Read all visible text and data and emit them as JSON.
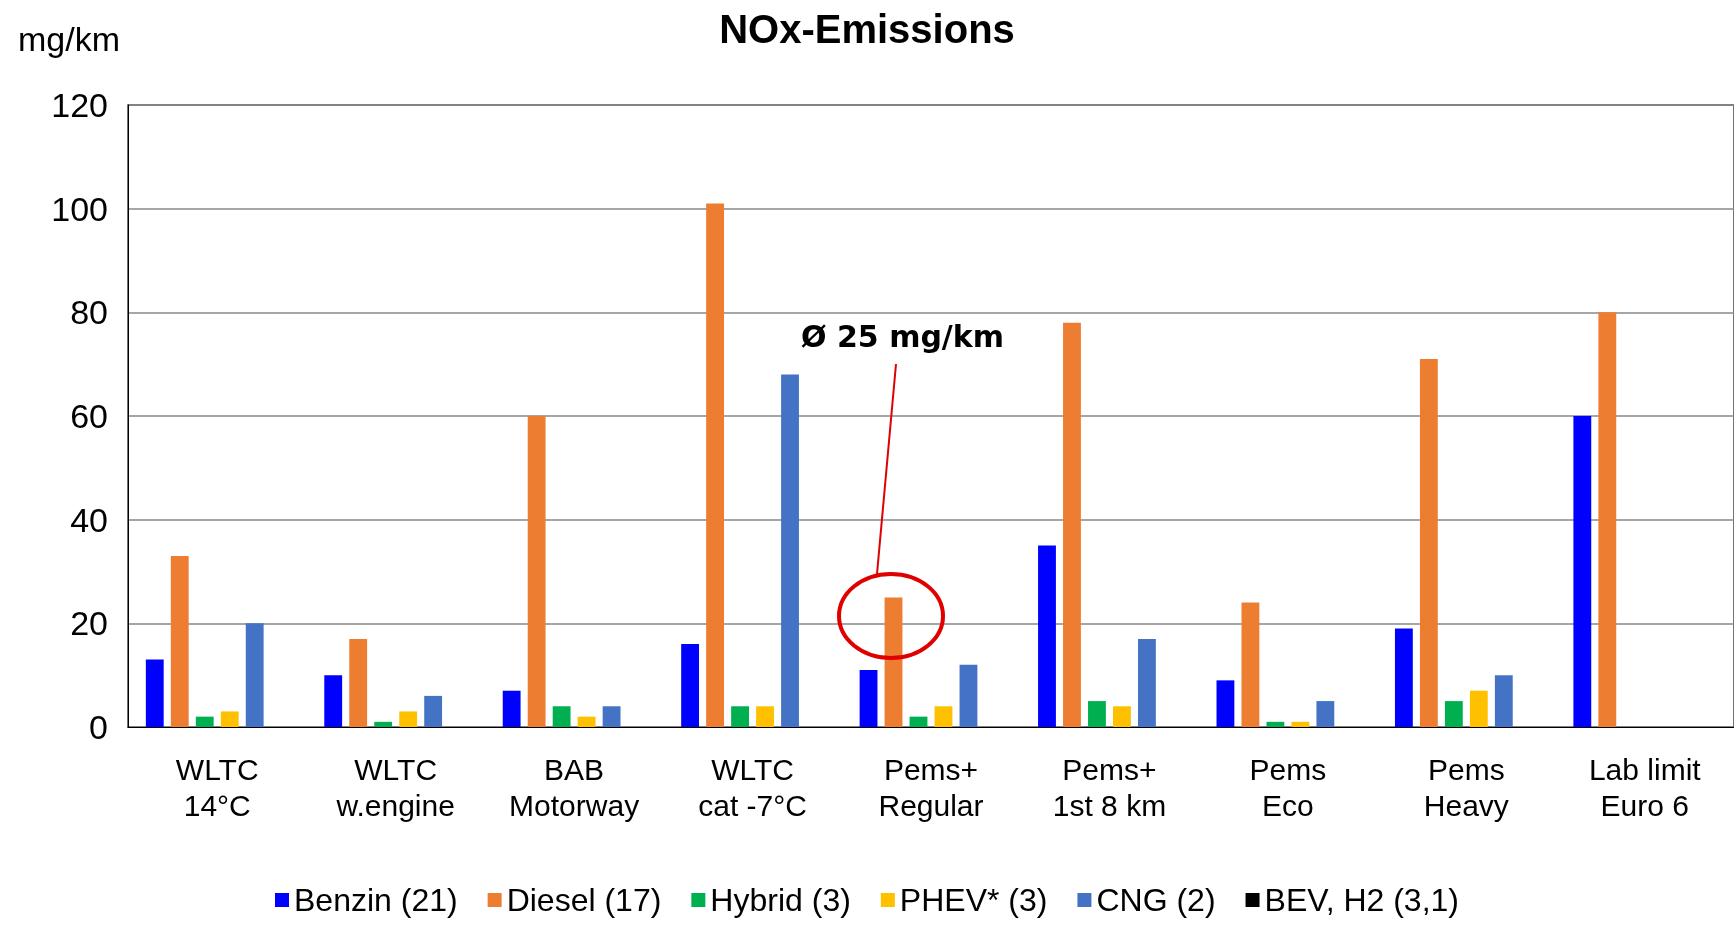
{
  "chart_data": {
    "type": "bar",
    "title": "NOx-Emissions",
    "ylabel": "mg/km",
    "categories": [
      "WLTC\n14°C",
      "WLTC\nw.engine",
      "BAB\nMotorway",
      "WLTC\ncat -7°C",
      "Pems+\nRegular",
      "Pems+\n1st 8 km",
      "Pems\nEco",
      "Pems\nHeavy",
      "Lab limit\nEuro 6"
    ],
    "series": [
      {
        "name": "Benzin (21)",
        "color": "#0000ff",
        "values": [
          13,
          10,
          7,
          16,
          11,
          35,
          9,
          19,
          60
        ]
      },
      {
        "name": "Diesel (17)",
        "color": "#ed7d31",
        "values": [
          33,
          17,
          60,
          101,
          25,
          78,
          24,
          71,
          80
        ]
      },
      {
        "name": "Hybrid (3)",
        "color": "#00b050",
        "values": [
          2,
          1,
          4,
          4,
          2,
          5,
          1,
          5,
          null
        ]
      },
      {
        "name": "PHEV* (3)",
        "color": "#ffc000",
        "values": [
          3,
          3,
          2,
          4,
          4,
          4,
          1,
          7,
          null
        ]
      },
      {
        "name": "CNG (2)",
        "color": "#4472c4",
        "values": [
          20,
          6,
          4,
          68,
          12,
          17,
          5,
          10,
          null
        ]
      },
      {
        "name": "BEV, H2 (3,1)",
        "color": "#000000",
        "values": [
          0,
          0,
          0,
          0,
          0,
          0,
          0,
          0,
          null
        ]
      }
    ],
    "ylim": [
      0,
      120
    ],
    "yticks": [
      0,
      20,
      40,
      60,
      80,
      100,
      120
    ],
    "grid": "y",
    "legend": "bottom",
    "annotations": [
      "Ø 25 mg/km"
    ]
  }
}
